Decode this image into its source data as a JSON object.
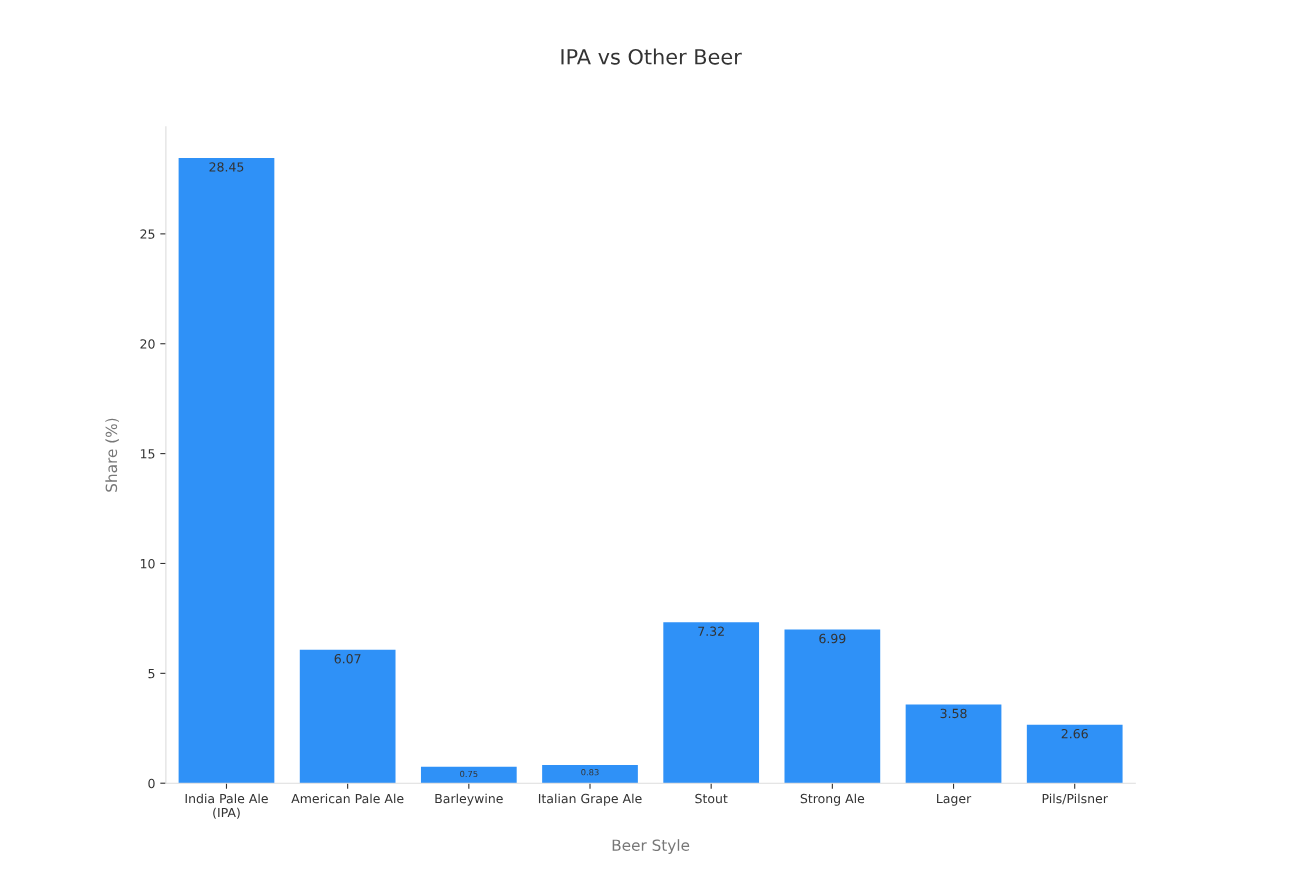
{
  "chart_data": {
    "type": "bar",
    "title": "IPA vs Other Beer",
    "xlabel": "Beer Style",
    "ylabel": "Share (%)",
    "categories": [
      "India Pale Ale\n(IPA)",
      "American Pale Ale",
      "Barleywine",
      "Italian Grape Ale",
      "Stout",
      "Strong Ale",
      "Lager",
      "Pils/Pilsner"
    ],
    "values": [
      28.45,
      6.07,
      0.75,
      0.83,
      7.32,
      6.99,
      3.58,
      2.66
    ],
    "color": "#2f91f7",
    "ylim": [
      0,
      29.87
    ],
    "yticks": [
      0,
      5,
      10,
      15,
      20,
      25
    ],
    "grid": false,
    "data_labels": true,
    "legend": false
  }
}
